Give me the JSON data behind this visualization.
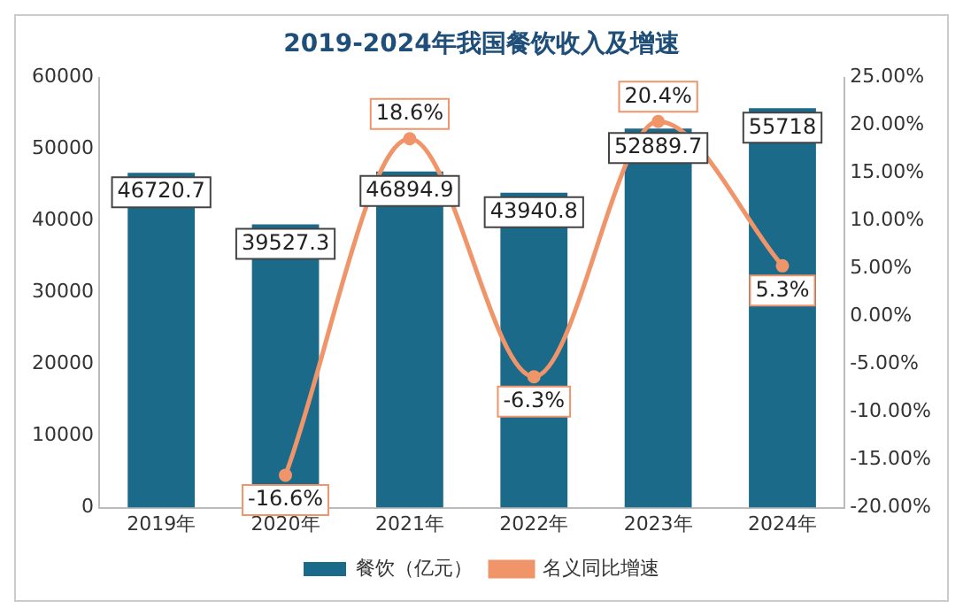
{
  "chart_data": {
    "type": "bar",
    "title": "2019-2024年我国餐饮收入及增速",
    "categories": [
      "2019年",
      "2020年",
      "2021年",
      "2022年",
      "2023年",
      "2024年"
    ],
    "series": [
      {
        "name": "餐饮（亿元）",
        "color": "#1b6a8a",
        "values": [
          46720.7,
          39527.3,
          46894.9,
          43940.8,
          52889.7,
          55718
        ],
        "value_labels": [
          "46720.7",
          "39527.3",
          "46894.9",
          "43940.8",
          "52889.7",
          "55718"
        ]
      },
      {
        "name": "名义同比增速",
        "type": "line",
        "axis": "y2",
        "color": "#f0956a",
        "marker": "circle",
        "values": [
          null,
          -16.6,
          18.6,
          -6.3,
          20.4,
          5.3
        ],
        "value_labels": [
          null,
          "-16.6%",
          "18.6%",
          "-6.3%",
          "20.4%",
          "5.3%"
        ]
      }
    ],
    "ylim": [
      0,
      60000
    ],
    "yticks": [
      0,
      10000,
      20000,
      30000,
      40000,
      50000,
      60000
    ],
    "y2lim": [
      -20,
      25
    ],
    "y2ticks": [
      {
        "value": -20,
        "label": "-20.00%"
      },
      {
        "value": -15,
        "label": "-15.00%"
      },
      {
        "value": -10,
        "label": "-10.00%"
      },
      {
        "value": -5,
        "label": "-5.00%"
      },
      {
        "value": 0,
        "label": "0.00%"
      },
      {
        "value": 5,
        "label": "5.00%"
      },
      {
        "value": 10,
        "label": "10.00%"
      },
      {
        "value": 15,
        "label": "15.00%"
      },
      {
        "value": 20,
        "label": "20.00%"
      },
      {
        "value": 25,
        "label": "25.00%"
      }
    ],
    "grid": false,
    "legend": "bottom"
  }
}
